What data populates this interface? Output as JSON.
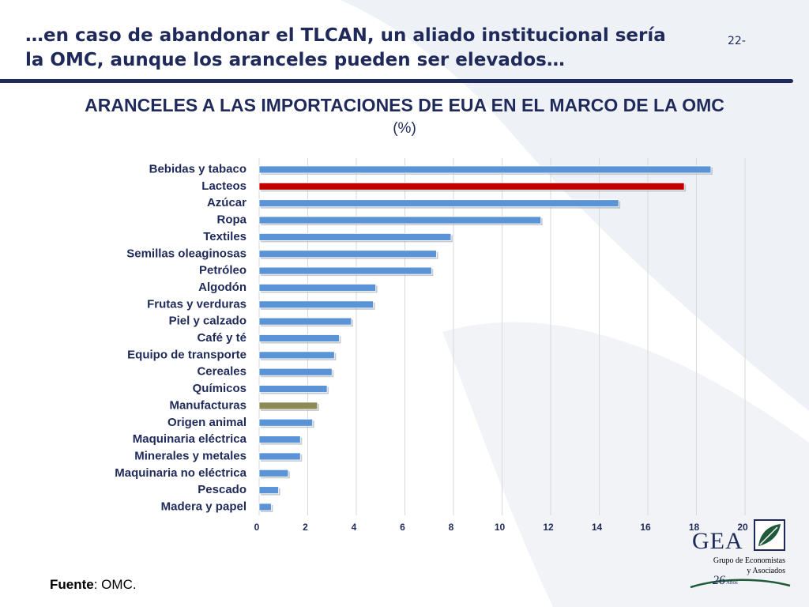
{
  "slide": {
    "title_line1": "…en caso de abandonar el TLCAN, un aliado institucional sería",
    "title_line2": "la OMC, aunque los aranceles pueden ser elevados…",
    "page_number": "22-"
  },
  "source": {
    "label": "Fuente",
    "text": ": OMC."
  },
  "logo": {
    "name": "GEA",
    "line1": "Grupo de Economistas",
    "line2": "y Asociados",
    "years": "26",
    "years_label": "Años"
  },
  "colors": {
    "default_bar": "#5b94d6",
    "highlight_bar": "#c00000",
    "manufacturas_bar": "#8c8a55",
    "text": "#1f2a5a",
    "grid": "#d9d9d9"
  },
  "chart_data": {
    "type": "bar",
    "orientation": "horizontal",
    "title": "ARANCELES A LAS IMPORTACIONES DE EUA EN EL MARCO DE LA OMC",
    "subtitle": "(%)",
    "categories": [
      "Bebidas y tabaco",
      "Lacteos",
      "Azúcar",
      "Ropa",
      "Textiles",
      "Semillas oleaginosas",
      "Petróleo",
      "Algodón",
      "Frutas y verduras",
      "Piel y calzado",
      "Café y té",
      "Equipo de transporte",
      "Cereales",
      "Químicos",
      "Manufacturas",
      "Origen animal",
      "Maquinaria eléctrica",
      "Minerales y metales",
      "Maquinaria no eléctrica",
      "Pescado",
      "Madera y papel"
    ],
    "values": [
      18.6,
      17.5,
      14.8,
      11.6,
      7.9,
      7.3,
      7.1,
      4.8,
      4.7,
      3.8,
      3.3,
      3.1,
      3.0,
      2.8,
      2.4,
      2.2,
      1.7,
      1.7,
      1.2,
      0.8,
      0.5
    ],
    "highlight": {
      "Lacteos": "#c00000",
      "Manufacturas": "#8c8a55"
    },
    "xlim": [
      0,
      20
    ],
    "xticks": [
      0,
      2,
      4,
      6,
      8,
      10,
      12,
      14,
      16,
      18,
      20
    ],
    "grid": true,
    "xlabel": "",
    "ylabel": ""
  }
}
